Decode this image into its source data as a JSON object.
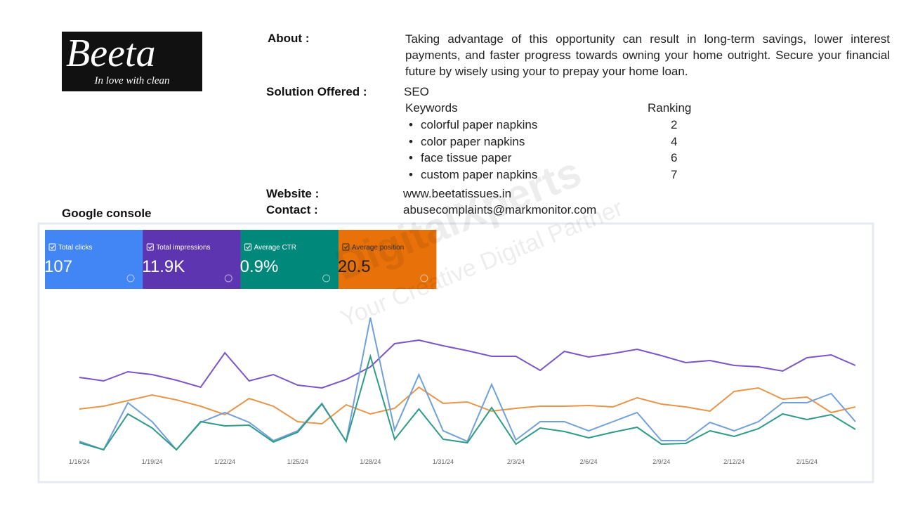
{
  "logo": {
    "name": "Beeta",
    "tagline": "In love with clean"
  },
  "about": {
    "label": "About :",
    "text": "Taking advantage of this opportunity can result in long-term savings, lower interest payments, and faster progress towards owning your home outright. Secure your financial future by wisely using your to prepay your home loan."
  },
  "solution": {
    "label": "Solution Offered :",
    "value": "SEO",
    "keywords_header": "Keywords",
    "ranking_header": "Ranking",
    "keywords": [
      {
        "keyword": "colorful paper napkins",
        "ranking": 2
      },
      {
        "keyword": "color paper napkins",
        "ranking": 4
      },
      {
        "keyword": "face tissue paper",
        "ranking": 6
      },
      {
        "keyword": "custom paper napkins",
        "ranking": 7
      }
    ]
  },
  "website": {
    "label": "Website :",
    "value": "www.beetatissues.in"
  },
  "contact": {
    "label": "Contact  :",
    "value": "abusecomplaints@markmonitor.com"
  },
  "section_title": "Google console",
  "watermark": {
    "brand": "DigitalXperts",
    "slogan": "Your Creative Digital Partner"
  },
  "cards": [
    {
      "label": "Total clicks",
      "value": "107",
      "color": "#4285f4"
    },
    {
      "label": "Total impressions",
      "value": "11.9K",
      "color": "#5e35b1"
    },
    {
      "label": "Average CTR",
      "value": "0.9%",
      "color": "#00897b"
    },
    {
      "label": "Average position",
      "value": "20.5",
      "color": "#e8710a"
    }
  ],
  "chart_data": {
    "type": "line",
    "categories": [
      "1/16/24",
      null,
      null,
      "1/19/24",
      null,
      null,
      "1/22/24",
      null,
      null,
      "1/25/24",
      null,
      null,
      "1/28/24",
      null,
      null,
      "1/31/24",
      null,
      null,
      "2/3/24",
      null,
      null,
      "2/6/24",
      null,
      null,
      "2/9/24",
      null,
      null,
      "2/12/24",
      null,
      null,
      "2/15/24",
      null,
      null
    ],
    "ylim": [
      0,
      240
    ],
    "series": [
      {
        "name": "Total impressions",
        "color": "#7b55c7",
        "values": [
          123,
          118,
          131,
          127,
          119,
          109,
          158,
          118,
          127,
          112,
          108,
          120,
          138,
          171,
          176,
          168,
          161,
          153,
          153,
          133,
          160,
          152,
          157,
          163,
          154,
          144,
          147,
          140,
          138,
          132,
          151,
          155,
          140
        ]
      },
      {
        "name": "Average position",
        "color": "#e8954a",
        "values": [
          78,
          82,
          90,
          98,
          91,
          82,
          70,
          93,
          82,
          60,
          57,
          84,
          71,
          79,
          109,
          86,
          88,
          75,
          79,
          82,
          82,
          83,
          81,
          94,
          85,
          81,
          75,
          103,
          108,
          92,
          95,
          73,
          81
        ]
      },
      {
        "name": "Total clicks",
        "color": "#6fa0dc",
        "values": [
          32,
          20,
          87,
          60,
          20,
          59,
          73,
          59,
          33,
          47,
          86,
          32,
          208,
          48,
          127,
          47,
          32,
          113,
          34,
          60,
          60,
          47,
          60,
          73,
          33,
          33,
          59,
          47,
          60,
          87,
          87,
          100,
          60
        ]
      },
      {
        "name": "Average CTR",
        "color": "#2e9b88",
        "values": [
          30,
          20,
          71,
          51,
          20,
          60,
          54,
          55,
          31,
          45,
          85,
          32,
          153,
          35,
          78,
          35,
          30,
          80,
          28,
          51,
          46,
          37,
          45,
          52,
          28,
          29,
          47,
          39,
          50,
          71,
          63,
          70,
          49
        ]
      }
    ]
  }
}
